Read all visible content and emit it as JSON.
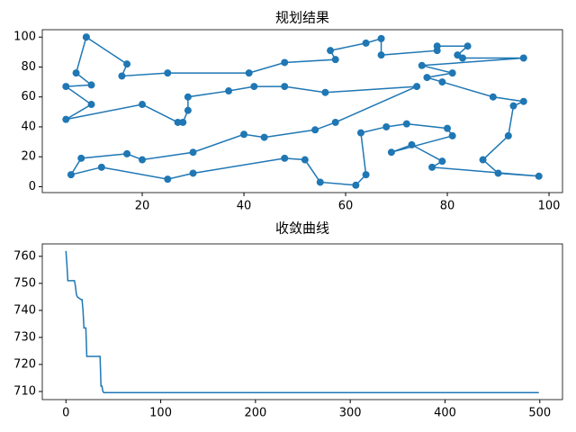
{
  "chart_data": [
    {
      "type": "line",
      "title": "规划结果",
      "color": "#1f77b4",
      "marker": true,
      "x": [
        9,
        17,
        16,
        25,
        41,
        48,
        58,
        57,
        64,
        67,
        67,
        78,
        78,
        84,
        82,
        83,
        95,
        75,
        81,
        76,
        79,
        89,
        95,
        93,
        92,
        87,
        90,
        98,
        77,
        79,
        73,
        69,
        81,
        80,
        72,
        68,
        63,
        64,
        62,
        55,
        52,
        48,
        30,
        25,
        12,
        6,
        8,
        17,
        20,
        30,
        40,
        44,
        54,
        58,
        74,
        56,
        48,
        42,
        37,
        29,
        29,
        28,
        27,
        20,
        5,
        10,
        5,
        10,
        7,
        9
      ],
      "values": [
        100,
        82,
        74,
        76,
        76,
        83,
        85,
        91,
        96,
        99,
        88,
        91,
        94,
        94,
        88,
        86,
        86,
        81,
        76,
        73,
        70,
        60,
        57,
        54,
        34,
        18,
        9,
        7,
        13,
        17,
        28,
        23,
        34,
        39,
        42,
        40,
        36,
        8,
        1,
        3,
        18,
        19,
        9,
        5,
        13,
        8,
        19,
        22,
        18,
        23,
        35,
        33,
        38,
        43,
        67,
        63,
        67,
        67,
        64,
        60,
        51,
        43,
        43,
        55,
        45,
        55,
        67,
        68,
        76,
        100
      ],
      "xlim": [
        0.35,
        102.65
      ],
      "ylim": [
        -3.95,
        104.95
      ],
      "xticks": [
        20,
        40,
        60,
        80,
        100
      ],
      "yticks": [
        0,
        20,
        40,
        60,
        80,
        100
      ]
    },
    {
      "type": "line",
      "title": "收敛曲线",
      "color": "#1f77b4",
      "marker": false,
      "x": [
        0,
        1,
        2,
        9,
        10,
        11,
        12,
        16,
        17,
        18,
        19,
        21,
        22,
        36,
        37,
        38,
        39,
        40,
        499
      ],
      "values": [
        762,
        757,
        751,
        751,
        749,
        746,
        745,
        744,
        744,
        740,
        733.5,
        733.5,
        723,
        723,
        712,
        712,
        710,
        709.6,
        709.6
      ],
      "xlim": [
        -24.95,
        523.95
      ],
      "ylim": [
        707,
        764.6
      ],
      "xticks": [
        0,
        100,
        200,
        300,
        400,
        500
      ],
      "yticks": [
        710,
        720,
        730,
        740,
        750,
        760
      ]
    }
  ]
}
